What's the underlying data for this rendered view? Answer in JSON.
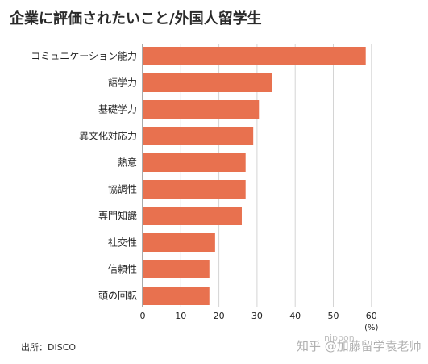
{
  "chart_data": {
    "type": "bar",
    "orientation": "horizontal",
    "title": "企業に評価されたいこと/外国人留学生",
    "categories": [
      "コミュニケーション能力",
      "語学力",
      "基礎学力",
      "異文化対応力",
      "熱意",
      "協調性",
      "専門知識",
      "社交性",
      "信頼性",
      "頭の回転"
    ],
    "values": [
      58.5,
      34,
      30.5,
      29,
      27,
      27,
      26,
      19,
      17.5,
      17.5
    ],
    "x_ticks": [
      "0",
      "10",
      "20",
      "30",
      "40",
      "50",
      "60"
    ],
    "xlim": [
      0,
      60
    ],
    "unit_label": "(%)",
    "bar_color": "#e8714f",
    "grid": true
  },
  "source": "出所：DISCO",
  "watermark": "知乎 @加藤留学袁老师",
  "watermark_sub": "nippon"
}
